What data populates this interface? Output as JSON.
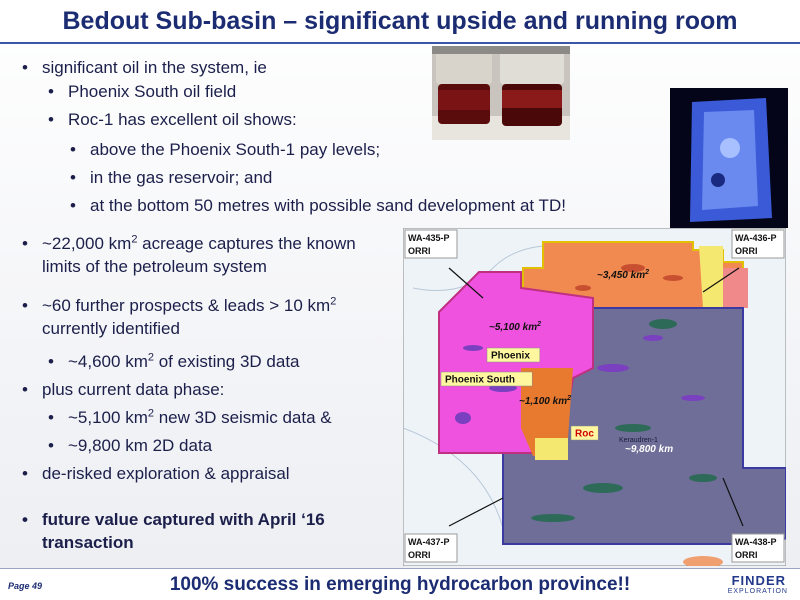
{
  "header": {
    "title": "Bedout Sub-basin – significant upside and running room"
  },
  "bullets": [
    {
      "level": 1,
      "parts": [
        "significant oil in the system, ie"
      ]
    },
    {
      "level": 2,
      "parts": [
        "Phoenix South oil field"
      ]
    },
    {
      "level": 2,
      "parts": [
        "Roc-1 has excellent oil shows:"
      ]
    },
    {
      "level": 3,
      "parts": [
        "above the Phoenix South-1 pay levels;"
      ]
    },
    {
      "level": 3,
      "parts": [
        "in the gas reservoir; and"
      ]
    },
    {
      "level": 3,
      "parts": [
        "at the bottom 50 metres with possible sand development at TD!"
      ]
    },
    {
      "level": 1,
      "parts": [
        "~22,000 km",
        "2",
        " acreage captures the known limits of the petroleum system"
      ]
    },
    {
      "level": 1,
      "parts": [
        "~60 further prospects & leads > 10 km",
        "2",
        " currently identified"
      ]
    },
    {
      "level": 2,
      "parts": [
        "~4,600 km",
        "2",
        " of existing 3D data"
      ]
    },
    {
      "level": 1,
      "parts": [
        "plus current data phase:"
      ]
    },
    {
      "level": 2,
      "parts": [
        "~5,100 km",
        "2",
        " new 3D seismic data &"
      ]
    },
    {
      "level": 2,
      "parts": [
        "~9,800 km 2D data"
      ]
    },
    {
      "level": 1,
      "parts": [
        "de-risked exploration & appraisal"
      ]
    },
    {
      "level": 1,
      "bold": true,
      "parts": [
        "future value captured with April ‘16 transaction"
      ]
    }
  ],
  "map": {
    "permits": [
      {
        "name": "WA-435-P",
        "tag": "ORRI"
      },
      {
        "name": "WA-436-P",
        "tag": "ORRI"
      },
      {
        "name": "WA-437-P",
        "tag": "ORRI"
      },
      {
        "name": "WA-438-P",
        "tag": "ORRI"
      }
    ],
    "areas": [
      {
        "label": "~3,450 km",
        "sup": "2"
      },
      {
        "label": "~5,100 km",
        "sup": "2"
      },
      {
        "label": "~1,100 km",
        "sup": "2"
      },
      {
        "label": "~9,800 km"
      }
    ],
    "fields": [
      "Phoenix",
      "Phoenix South",
      "Roc"
    ],
    "wells": [
      "Keraudren-1"
    ]
  },
  "footer": {
    "page": "Page 49",
    "tagline": "100% success in emerging hydrocarbon province!!",
    "logo": "FINDER",
    "logo_sub": "EXPLORATION"
  }
}
